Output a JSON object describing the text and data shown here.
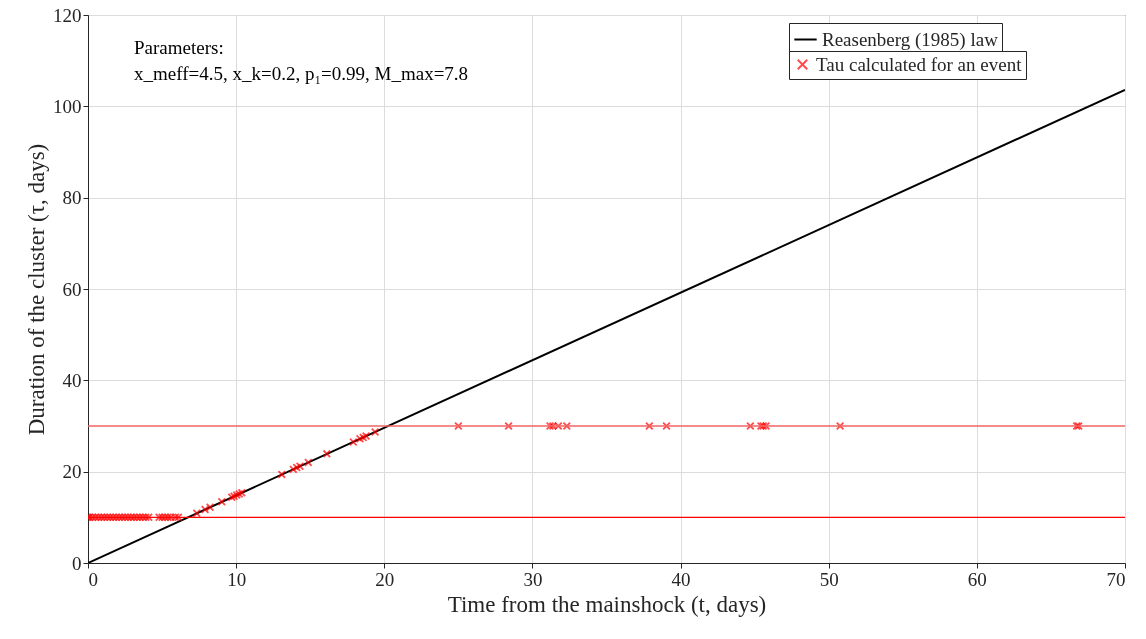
{
  "chart_data": {
    "type": "scatter",
    "xlabel": "Time from the mainshock (t, days)",
    "ylabel": "Duration of the cluster (τ, days)",
    "xlim": [
      0,
      70
    ],
    "ylim": [
      0,
      120
    ],
    "xticks": [
      0,
      10,
      20,
      30,
      40,
      50,
      60,
      70
    ],
    "yticks": [
      0,
      20,
      40,
      60,
      80,
      100,
      120
    ],
    "grid": true,
    "legend": "top right",
    "annotations": [
      "Parameters:",
      "x_meff=4.5, x_k=0.2, p₁=0.99, M_max=7.8"
    ],
    "ref_lines": [
      {
        "axis": "y",
        "value": 10,
        "color": "#ff0000"
      },
      {
        "axis": "y",
        "value": 30,
        "color": "#f06464"
      }
    ],
    "series": [
      {
        "name": "Reasenberg (1985) law",
        "type": "line",
        "color": "#000000",
        "line_style": "solid",
        "x": [
          0,
          70
        ],
        "values": [
          0,
          103.6
        ]
      },
      {
        "name": "Tau calculated for an event",
        "color": "#ff0000",
        "marker": "cross",
        "x": [
          0,
          0.1,
          0.3,
          0.5,
          0.7,
          0.9,
          1.1,
          1.3,
          1.5,
          1.7,
          1.9,
          2.1,
          2.3,
          2.5,
          2.7,
          2.9,
          3.1,
          3.3,
          3.5,
          3.7,
          3.9,
          4.1,
          4.8,
          5.0,
          5.2,
          5.4,
          5.6,
          5.9,
          6.1,
          7.34,
          7.9,
          8.24,
          9.03,
          9.7,
          9.86,
          10.04,
          10.21,
          10.38,
          13.08,
          13.86,
          14.09,
          14.31,
          14.87,
          16.12,
          17.91,
          18.36,
          18.58,
          18.77,
          19.38,
          25.0,
          28.39,
          31.19,
          31.38,
          31.75,
          32.32,
          37.89,
          39.05,
          44.71,
          45.43,
          45.58,
          45.77,
          50.77,
          66.74,
          66.87
        ],
        "values": [
          10,
          10,
          10,
          10,
          10,
          10,
          10,
          10,
          10,
          10,
          10,
          10,
          10,
          10,
          10,
          10,
          10,
          10,
          10,
          10,
          10,
          10,
          10,
          10,
          10,
          10,
          10,
          10,
          10,
          10.9,
          11.7,
          12.2,
          13.4,
          14.4,
          14.6,
          14.9,
          15.1,
          15.4,
          19.4,
          20.5,
          20.9,
          21.2,
          22.0,
          23.9,
          26.5,
          27.2,
          27.5,
          27.8,
          28.7,
          30,
          30,
          30,
          30,
          30,
          30,
          30,
          30,
          30,
          30,
          30,
          30,
          30,
          30,
          30
        ]
      }
    ]
  }
}
